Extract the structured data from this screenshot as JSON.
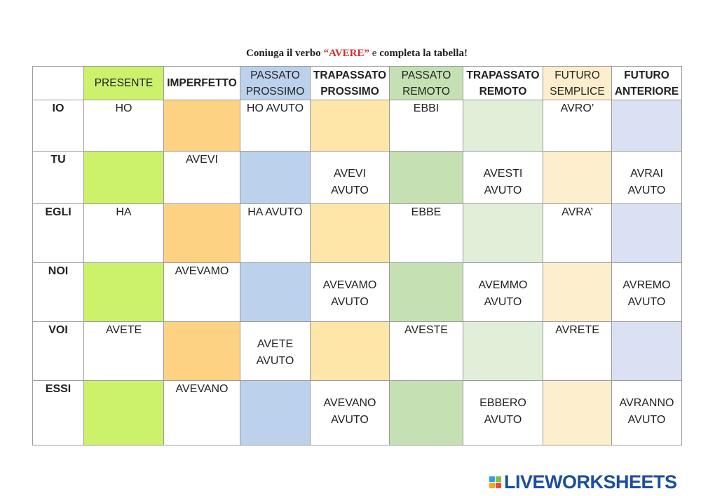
{
  "title": {
    "part1": "Coniuga il verbo ",
    "verb": "“AVERE”",
    "part2": " e ",
    "part3": "completa la tabella!"
  },
  "table": {
    "headers": [
      {
        "line1": "PRESENTE",
        "line2": ""
      },
      {
        "line1": "IMPERFETTO",
        "line2": ""
      },
      {
        "line1": "PASSATO",
        "line2": "PROSSIMO"
      },
      {
        "line1": "TRAPASSATO",
        "line2": "PROSSIMO"
      },
      {
        "line1": "PASSATO",
        "line2": "REMOTO"
      },
      {
        "line1": "TRAPASSATO",
        "line2": "REMOTO"
      },
      {
        "line1": "FUTURO",
        "line2": "SEMPLICE"
      },
      {
        "line1": "FUTURO",
        "line2": "ANTERIORE"
      }
    ],
    "rows": [
      {
        "pronoun": "IO",
        "cells": [
          [
            "HO",
            ""
          ],
          [
            "",
            ""
          ],
          [
            "HO AVUTO",
            ""
          ],
          [
            "",
            ""
          ],
          [
            "EBBI",
            ""
          ],
          [
            "",
            ""
          ],
          [
            "AVRO’",
            ""
          ],
          [
            "",
            ""
          ]
        ]
      },
      {
        "pronoun": "TU",
        "cells": [
          [
            "",
            ""
          ],
          [
            "AVEVI",
            ""
          ],
          [
            "",
            ""
          ],
          [
            "AVEVI",
            "AVUTO"
          ],
          [
            "",
            ""
          ],
          [
            "AVESTI",
            "AVUTO"
          ],
          [
            "",
            ""
          ],
          [
            "AVRAI",
            "AVUTO"
          ]
        ]
      },
      {
        "pronoun": "EGLI",
        "cells": [
          [
            "HA",
            ""
          ],
          [
            "",
            ""
          ],
          [
            "HA AVUTO",
            ""
          ],
          [
            "",
            ""
          ],
          [
            "EBBE",
            ""
          ],
          [
            "",
            ""
          ],
          [
            "AVRA’",
            ""
          ],
          [
            "",
            ""
          ]
        ]
      },
      {
        "pronoun": "NOI",
        "cells": [
          [
            "",
            ""
          ],
          [
            "AVEVAMO",
            ""
          ],
          [
            "",
            ""
          ],
          [
            "AVEVAMO",
            "AVUTO"
          ],
          [
            "",
            ""
          ],
          [
            "AVEMMO",
            "AVUTO"
          ],
          [
            "",
            ""
          ],
          [
            "AVREMO",
            "AVUTO"
          ]
        ]
      },
      {
        "pronoun": "VOI",
        "cells": [
          [
            "AVETE",
            ""
          ],
          [
            "",
            ""
          ],
          [
            "AVETE",
            "AVUTO"
          ],
          [
            "",
            ""
          ],
          [
            "AVESTE",
            ""
          ],
          [
            "",
            ""
          ],
          [
            "AVRETE",
            ""
          ],
          [
            "",
            ""
          ]
        ]
      },
      {
        "pronoun": "ESSI",
        "cells": [
          [
            "",
            ""
          ],
          [
            "AVEVANO",
            ""
          ],
          [
            "",
            ""
          ],
          [
            "AVEVANO",
            "AVUTO"
          ],
          [
            "",
            ""
          ],
          [
            "EBBERO",
            "AVUTO"
          ],
          [
            "",
            ""
          ],
          [
            "AVRANNO",
            "AVUTO"
          ]
        ]
      }
    ]
  },
  "colors": {
    "pronoun_red": "#e2231a",
    "header_blue": "#1f4fd8",
    "col_presente": "#ccf26c",
    "col_imperfetto": "#fdd282",
    "col_passato_prossimo": "#bcd2ec",
    "col_trapassato_prossimo": "#fde6a8",
    "col_passato_remoto": "#c5e1b3",
    "col_trapassato_remoto": "#e1efd8",
    "col_futuro_semplice": "#fdeecd",
    "col_futuro_anteriore": "#d9e1f3"
  },
  "logo": {
    "text": "LIVEWORKSHEETS",
    "icon": "liveworksheets-logo-icon"
  }
}
